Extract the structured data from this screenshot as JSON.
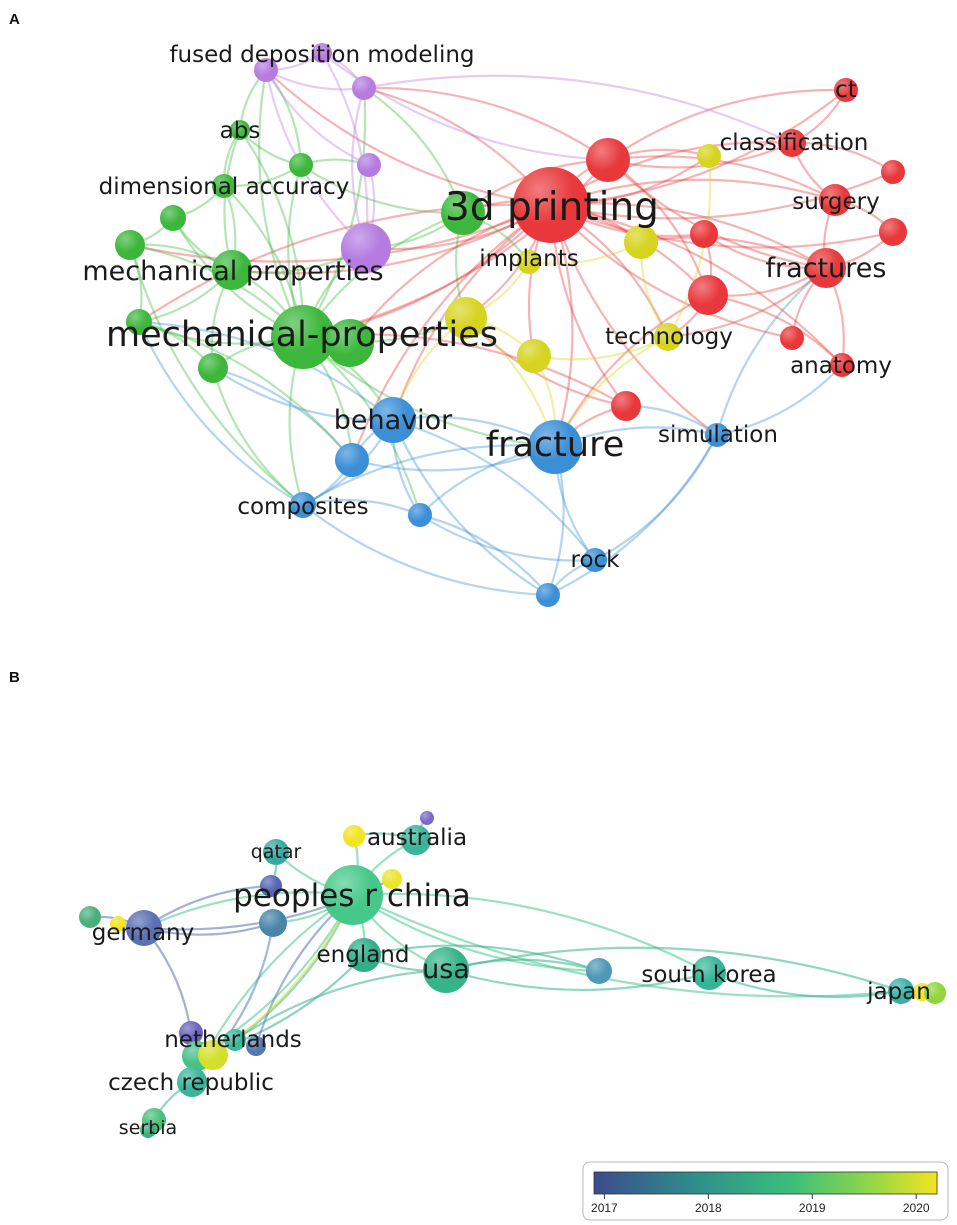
{
  "panel_a": {
    "letter": "A",
    "labels": [
      {
        "text": "fused deposition modeling",
        "size": "m"
      },
      {
        "text": "abs",
        "size": "m"
      },
      {
        "text": "dimensional accuracy",
        "size": "m"
      },
      {
        "text": "mechanical properties",
        "size": "l"
      },
      {
        "text": "mechanical-properties",
        "size": "xl"
      },
      {
        "text": "3d printing",
        "size": "xxl"
      },
      {
        "text": "implants",
        "size": "m"
      },
      {
        "text": "classification",
        "size": "m"
      },
      {
        "text": "ct",
        "size": "m"
      },
      {
        "text": "surgery",
        "size": "m"
      },
      {
        "text": "fractures",
        "size": "l"
      },
      {
        "text": "technology",
        "size": "m"
      },
      {
        "text": "anatomy",
        "size": "m"
      },
      {
        "text": "behavior",
        "size": "l"
      },
      {
        "text": "fracture",
        "size": "xl"
      },
      {
        "text": "simulation",
        "size": "m"
      },
      {
        "text": "composites",
        "size": "m"
      },
      {
        "text": "rock",
        "size": "m"
      }
    ],
    "cluster_colors": {
      "red": "#e8383b",
      "green": "#3cb73c",
      "blue": "#3b8fd6",
      "yellow": "#d6d41e",
      "purple": "#b57be0"
    }
  },
  "panel_b": {
    "letter": "B",
    "labels": [
      {
        "text": "australia",
        "size": "m"
      },
      {
        "text": "qatar",
        "size": "s"
      },
      {
        "text": "peoples r china",
        "size": "xl"
      },
      {
        "text": "germany",
        "size": "m"
      },
      {
        "text": "england",
        "size": "m"
      },
      {
        "text": "usa",
        "size": "l"
      },
      {
        "text": "south korea",
        "size": "m"
      },
      {
        "text": "japan",
        "size": "m"
      },
      {
        "text": "netherlands",
        "size": "m"
      },
      {
        "text": "czech republic",
        "size": "m"
      },
      {
        "text": "serbia",
        "size": "s"
      }
    ],
    "colorbar": {
      "ticks": [
        "2017",
        "2018",
        "2019",
        "2020"
      ],
      "tick_values": [
        2017,
        2018,
        2019,
        2020
      ],
      "range": [
        2016.9,
        2020.2
      ],
      "colors": [
        "#3b4b8c",
        "#2f8f8c",
        "#3cbf7a",
        "#8fd64a",
        "#f2e420"
      ]
    }
  }
}
